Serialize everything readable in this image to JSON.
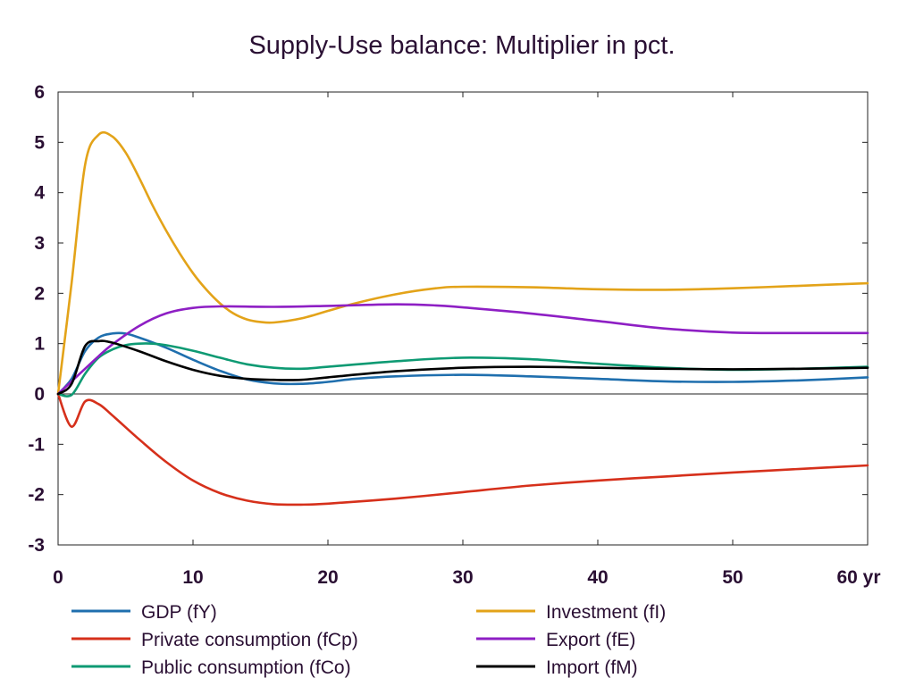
{
  "chart_data": {
    "type": "line",
    "title": "Supply-Use balance: Multiplier in pct.",
    "xlabel": "",
    "ylabel": "",
    "xlim": [
      0,
      60
    ],
    "ylim": [
      -3,
      6
    ],
    "x_ticks": [
      0,
      10,
      20,
      30,
      40,
      50,
      60
    ],
    "x_tick_labels": [
      "0",
      "10",
      "20",
      "30",
      "40",
      "50",
      "60 yr"
    ],
    "y_ticks": [
      -3,
      -2,
      -1,
      0,
      1,
      2,
      3,
      4,
      5,
      6
    ],
    "y_tick_labels": [
      "-3",
      "-2",
      "-1",
      "0",
      "1",
      "2",
      "3",
      "4",
      "5",
      "6"
    ],
    "grid": false,
    "zero_line": true,
    "legend_position": "bottom",
    "series": [
      {
        "name": "GDP (fY)",
        "color": "#1f6fae",
        "points": [
          [
            0,
            0
          ],
          [
            1,
            0.3
          ],
          [
            2,
            0.85
          ],
          [
            3,
            1.12
          ],
          [
            4,
            1.2
          ],
          [
            5,
            1.2
          ],
          [
            6,
            1.12
          ],
          [
            8,
            0.92
          ],
          [
            10,
            0.68
          ],
          [
            12,
            0.46
          ],
          [
            14,
            0.29
          ],
          [
            16,
            0.21
          ],
          [
            18,
            0.2
          ],
          [
            20,
            0.24
          ],
          [
            22,
            0.3
          ],
          [
            25,
            0.35
          ],
          [
            30,
            0.38
          ],
          [
            35,
            0.35
          ],
          [
            40,
            0.3
          ],
          [
            45,
            0.25
          ],
          [
            50,
            0.24
          ],
          [
            55,
            0.27
          ],
          [
            60,
            0.33
          ]
        ]
      },
      {
        "name": "Private consumption (fCp)",
        "color": "#d6301b",
        "points": [
          [
            0,
            0
          ],
          [
            1,
            -0.65
          ],
          [
            2,
            -0.15
          ],
          [
            3,
            -0.2
          ],
          [
            4,
            -0.42
          ],
          [
            6,
            -0.9
          ],
          [
            8,
            -1.35
          ],
          [
            10,
            -1.72
          ],
          [
            12,
            -1.97
          ],
          [
            14,
            -2.12
          ],
          [
            16,
            -2.19
          ],
          [
            18,
            -2.2
          ],
          [
            20,
            -2.18
          ],
          [
            25,
            -2.08
          ],
          [
            30,
            -1.95
          ],
          [
            35,
            -1.82
          ],
          [
            40,
            -1.72
          ],
          [
            45,
            -1.64
          ],
          [
            50,
            -1.56
          ],
          [
            55,
            -1.49
          ],
          [
            60,
            -1.42
          ]
        ]
      },
      {
        "name": "Public consumption (fCo)",
        "color": "#0e9a73",
        "points": [
          [
            0,
            0
          ],
          [
            1,
            -0.02
          ],
          [
            2,
            0.4
          ],
          [
            3,
            0.72
          ],
          [
            4,
            0.88
          ],
          [
            5,
            0.97
          ],
          [
            6,
            1.0
          ],
          [
            7,
            1.0
          ],
          [
            8,
            0.97
          ],
          [
            10,
            0.86
          ],
          [
            12,
            0.72
          ],
          [
            14,
            0.59
          ],
          [
            16,
            0.52
          ],
          [
            18,
            0.5
          ],
          [
            20,
            0.54
          ],
          [
            25,
            0.65
          ],
          [
            30,
            0.72
          ],
          [
            35,
            0.69
          ],
          [
            40,
            0.6
          ],
          [
            45,
            0.52
          ],
          [
            50,
            0.48
          ],
          [
            55,
            0.5
          ],
          [
            60,
            0.54
          ]
        ]
      },
      {
        "name": "Investment (fI)",
        "color": "#e3a319",
        "points": [
          [
            0,
            0
          ],
          [
            1,
            2.2
          ],
          [
            2,
            4.55
          ],
          [
            3,
            5.15
          ],
          [
            4,
            5.12
          ],
          [
            5,
            4.8
          ],
          [
            6,
            4.3
          ],
          [
            7,
            3.75
          ],
          [
            8,
            3.25
          ],
          [
            9,
            2.8
          ],
          [
            10,
            2.4
          ],
          [
            11,
            2.07
          ],
          [
            12,
            1.8
          ],
          [
            13,
            1.6
          ],
          [
            14,
            1.48
          ],
          [
            15,
            1.43
          ],
          [
            16,
            1.42
          ],
          [
            18,
            1.5
          ],
          [
            20,
            1.65
          ],
          [
            22,
            1.8
          ],
          [
            25,
            1.98
          ],
          [
            28,
            2.1
          ],
          [
            30,
            2.13
          ],
          [
            35,
            2.12
          ],
          [
            40,
            2.08
          ],
          [
            45,
            2.07
          ],
          [
            50,
            2.1
          ],
          [
            55,
            2.15
          ],
          [
            60,
            2.2
          ]
        ]
      },
      {
        "name": "Export (fE)",
        "color": "#8e1fc4",
        "points": [
          [
            0,
            0
          ],
          [
            1,
            0.25
          ],
          [
            2,
            0.5
          ],
          [
            3,
            0.75
          ],
          [
            4,
            0.98
          ],
          [
            6,
            1.35
          ],
          [
            8,
            1.6
          ],
          [
            10,
            1.71
          ],
          [
            12,
            1.74
          ],
          [
            16,
            1.73
          ],
          [
            20,
            1.75
          ],
          [
            25,
            1.78
          ],
          [
            28,
            1.76
          ],
          [
            30,
            1.72
          ],
          [
            35,
            1.6
          ],
          [
            40,
            1.45
          ],
          [
            45,
            1.3
          ],
          [
            50,
            1.22
          ],
          [
            55,
            1.21
          ],
          [
            60,
            1.21
          ]
        ]
      },
      {
        "name": "Import (fM)",
        "color": "#000000",
        "points": [
          [
            0,
            0
          ],
          [
            1,
            0.2
          ],
          [
            2,
            0.95
          ],
          [
            3,
            1.05
          ],
          [
            4,
            1.02
          ],
          [
            6,
            0.85
          ],
          [
            8,
            0.65
          ],
          [
            10,
            0.48
          ],
          [
            12,
            0.36
          ],
          [
            14,
            0.3
          ],
          [
            16,
            0.28
          ],
          [
            18,
            0.28
          ],
          [
            20,
            0.33
          ],
          [
            25,
            0.45
          ],
          [
            30,
            0.52
          ],
          [
            35,
            0.54
          ],
          [
            40,
            0.52
          ],
          [
            45,
            0.5
          ],
          [
            50,
            0.49
          ],
          [
            55,
            0.5
          ],
          [
            60,
            0.52
          ]
        ]
      }
    ]
  }
}
